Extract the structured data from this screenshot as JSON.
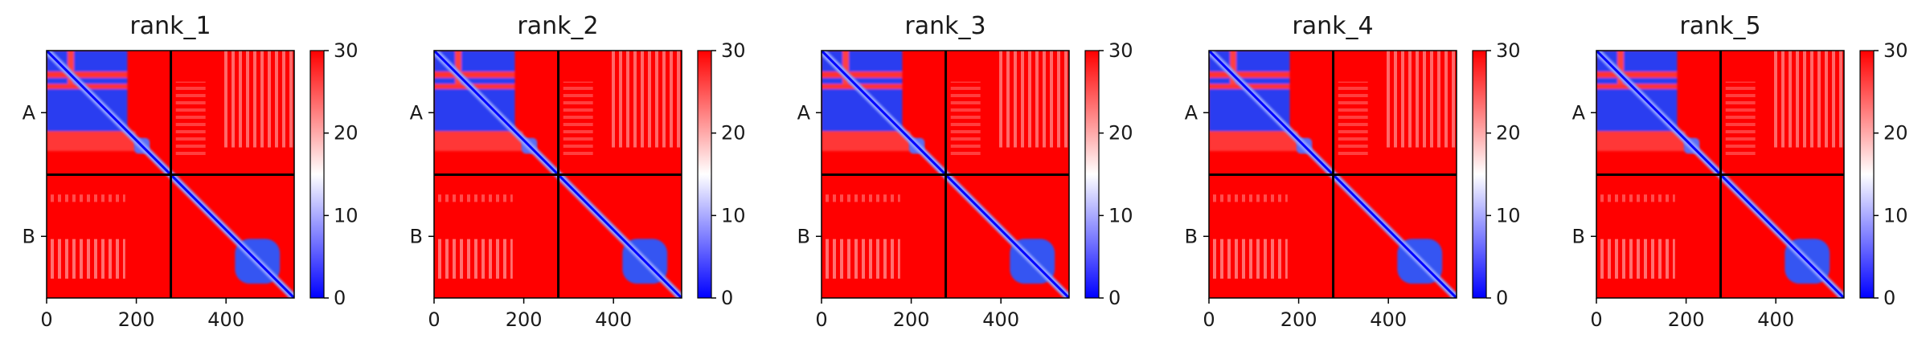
{
  "chart_data": [
    {
      "type": "heatmap",
      "title": "rank_1",
      "x_ticks": [
        0,
        200,
        400
      ],
      "y_ticks": [
        "A",
        "B"
      ],
      "chain_boundary": 277,
      "sequence_length": 552,
      "colorbar": {
        "min": 0,
        "max": 30,
        "ticks": [
          0,
          10,
          20,
          30
        ],
        "colormap": "bwr"
      },
      "interface_cross_blocks": "high (red)",
      "grid": false
    },
    {
      "type": "heatmap",
      "title": "rank_2",
      "x_ticks": [
        0,
        200,
        400
      ],
      "y_ticks": [
        "A",
        "B"
      ],
      "chain_boundary": 277,
      "sequence_length": 552,
      "colorbar": {
        "min": 0,
        "max": 30,
        "ticks": [
          0,
          10,
          20,
          30
        ],
        "colormap": "bwr"
      },
      "interface_cross_blocks": "high (red)",
      "grid": false
    },
    {
      "type": "heatmap",
      "title": "rank_3",
      "x_ticks": [
        0,
        200,
        400
      ],
      "y_ticks": [
        "A",
        "B"
      ],
      "chain_boundary": 277,
      "sequence_length": 552,
      "colorbar": {
        "min": 0,
        "max": 30,
        "ticks": [
          0,
          10,
          20,
          30
        ],
        "colormap": "bwr"
      },
      "interface_cross_blocks": "high (red)",
      "grid": false
    },
    {
      "type": "heatmap",
      "title": "rank_4",
      "x_ticks": [
        0,
        200,
        400
      ],
      "y_ticks": [
        "A",
        "B"
      ],
      "chain_boundary": 277,
      "sequence_length": 552,
      "colorbar": {
        "min": 0,
        "max": 30,
        "ticks": [
          0,
          10,
          20,
          30
        ],
        "colormap": "bwr"
      },
      "interface_cross_blocks": "high (red)",
      "grid": false
    },
    {
      "type": "heatmap",
      "title": "rank_5",
      "x_ticks": [
        0,
        200,
        400
      ],
      "y_ticks": [
        "A",
        "B"
      ],
      "chain_boundary": 277,
      "sequence_length": 552,
      "colorbar": {
        "min": 0,
        "max": 30,
        "ticks": [
          0,
          10,
          20,
          30
        ],
        "colormap": "bwr"
      },
      "interface_cross_blocks": "high (red)",
      "grid": false
    }
  ],
  "colors": {
    "high": "#ff0000",
    "mid": "#ffffff",
    "low": "#0000ff",
    "divider": "#000000"
  }
}
